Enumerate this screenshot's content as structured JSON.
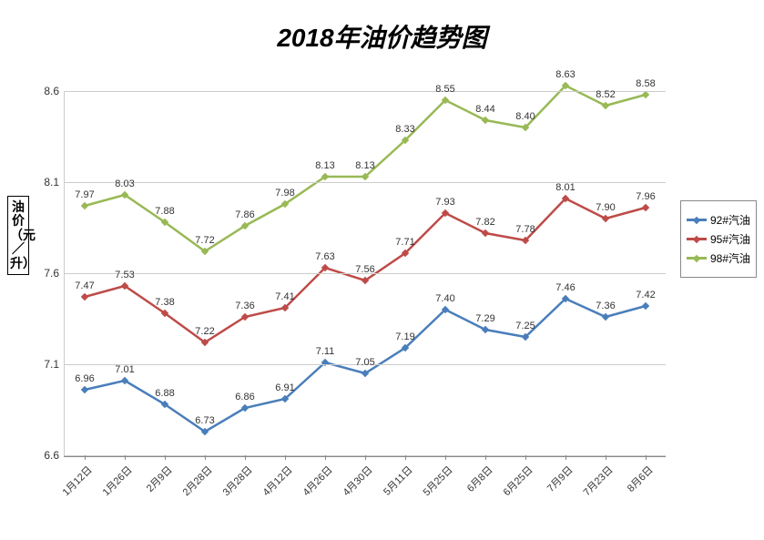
{
  "chart": {
    "type": "line",
    "title": "2018年油价趋势图",
    "title_fontsize": 28,
    "title_fontweight": "bold",
    "title_fontstyle": "italic",
    "background_color": "#ffffff",
    "grid_color": "#cccccc",
    "axis_color": "#888888",
    "y_axis_label": "油价（元／升）",
    "ylim": [
      6.6,
      8.6
    ],
    "ytick_step": 0.5,
    "yticks": [
      6.6,
      7.1,
      7.6,
      8.1,
      8.6
    ],
    "x_labels": [
      "1月12日",
      "1月26日",
      "2月9日",
      "2月28日",
      "3月28日",
      "4月12日",
      "4月26日",
      "4月30日",
      "5月11日",
      "5月25日",
      "6月8日",
      "6月25日",
      "7月9日",
      "7月23日",
      "8月6日"
    ],
    "line_width": 2.5,
    "marker_style": "diamond",
    "marker_size": 6,
    "label_fontsize": 11,
    "x_label_rotation": -45,
    "series": [
      {
        "name": "92#汽油",
        "color": "#4a7ebb",
        "values": [
          6.96,
          7.01,
          6.88,
          6.73,
          6.86,
          6.91,
          7.11,
          7.05,
          7.19,
          7.4,
          7.29,
          7.25,
          7.46,
          7.36,
          7.42
        ]
      },
      {
        "name": "95#汽油",
        "color": "#be4b48",
        "values": [
          7.47,
          7.53,
          7.38,
          7.22,
          7.36,
          7.41,
          7.63,
          7.56,
          7.71,
          7.93,
          7.82,
          7.78,
          8.01,
          7.9,
          7.96
        ]
      },
      {
        "name": "98#汽油",
        "color": "#98b954",
        "values": [
          7.97,
          8.03,
          7.88,
          7.72,
          7.86,
          7.98,
          8.13,
          8.13,
          8.33,
          8.55,
          8.44,
          8.4,
          8.63,
          8.52,
          8.58
        ]
      }
    ],
    "legend_position": "right"
  }
}
